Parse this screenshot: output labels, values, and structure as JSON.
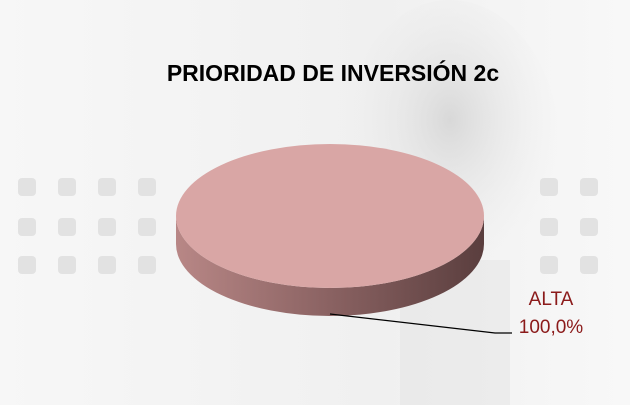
{
  "chart_data": {
    "type": "pie",
    "title": "PRIORIDAD DE INVERSIÓN 2c",
    "categories": [
      "ALTA"
    ],
    "values": [
      100
    ],
    "value_labels": [
      "100,0%"
    ],
    "color": "#d9a6a5",
    "label_color": "#8b1a1a"
  }
}
